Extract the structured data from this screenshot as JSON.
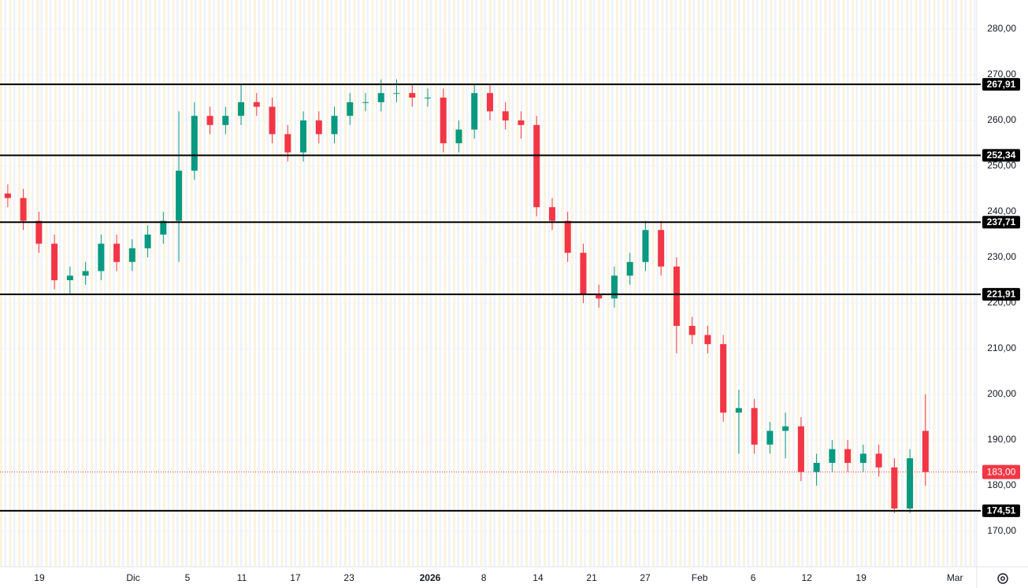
{
  "chart_data": {
    "type": "candlestick",
    "open": [
      244,
      243,
      238,
      233,
      225,
      226,
      227,
      233,
      229,
      232,
      235,
      238,
      249,
      261,
      259,
      261,
      264,
      263,
      257,
      253,
      260,
      257,
      261,
      264,
      264,
      266,
      266,
      265,
      265,
      255,
      258,
      266,
      262,
      260,
      259,
      241,
      238,
      231,
      222,
      221,
      226,
      229,
      236,
      228,
      215,
      213,
      211,
      196,
      197,
      189,
      192,
      193,
      183,
      185,
      188,
      185,
      187,
      184,
      175,
      192
    ],
    "high": [
      246,
      245,
      240,
      235,
      228,
      229,
      235,
      235,
      234,
      237,
      240,
      262,
      264,
      263,
      263,
      268,
      266,
      265,
      259,
      262,
      262,
      263,
      266,
      266,
      269,
      269,
      268,
      267,
      267,
      260,
      268,
      268,
      264,
      262,
      261,
      243,
      240,
      233,
      224,
      228,
      231,
      238,
      238,
      230,
      217,
      215,
      213,
      201,
      199,
      194,
      196,
      195,
      187,
      190,
      190,
      189,
      189,
      186,
      188,
      200
    ],
    "low": [
      241,
      236,
      231,
      223,
      222,
      224,
      225,
      227,
      227,
      230,
      233,
      229,
      247,
      257,
      257,
      259,
      261,
      255,
      251,
      251,
      255,
      255,
      259,
      262,
      262,
      264,
      263,
      263,
      253,
      253,
      256,
      260,
      258,
      256,
      239,
      236,
      229,
      220,
      219,
      219,
      224,
      227,
      226,
      209,
      211,
      209,
      194,
      187,
      187,
      187,
      186,
      181,
      180,
      183,
      183,
      183,
      182,
      174,
      174,
      180
    ],
    "close": [
      243,
      238,
      233,
      225,
      226,
      227,
      233,
      229,
      232,
      235,
      238,
      249,
      261,
      259,
      261,
      264,
      263,
      257,
      253,
      260,
      257,
      261,
      264,
      264,
      266,
      266,
      265,
      265,
      255,
      258,
      266,
      262,
      260,
      259,
      241,
      238,
      231,
      222,
      221,
      226,
      229,
      236,
      228,
      215,
      213,
      211,
      196,
      197,
      189,
      192,
      193,
      183,
      185,
      188,
      185,
      187,
      184,
      175,
      186,
      183
    ],
    "up_color": "#089981",
    "down_color": "#f23645",
    "xlim": [
      -0.5,
      62.3
    ],
    "xticks": [
      {
        "value": 2.03,
        "label": "19"
      },
      {
        "value": 8.06,
        "label": "Dic"
      },
      {
        "value": 11.55,
        "label": "5"
      },
      {
        "value": 15.05,
        "label": "11"
      },
      {
        "value": 18.49,
        "label": "17"
      },
      {
        "value": 21.94,
        "label": "23"
      },
      {
        "value": 27.15,
        "label": "2026"
      },
      {
        "value": 30.6,
        "label": "8"
      },
      {
        "value": 34.09,
        "label": "14"
      },
      {
        "value": 37.54,
        "label": "21"
      },
      {
        "value": 40.98,
        "label": "27"
      },
      {
        "value": 44.48,
        "label": "Feb"
      },
      {
        "value": 47.92,
        "label": "6"
      },
      {
        "value": 51.37,
        "label": "12"
      },
      {
        "value": 54.86,
        "label": "19"
      },
      {
        "value": 60.89,
        "label": "Mar"
      }
    ],
    "ylim": [
      162.24,
      286.38
    ],
    "yticks": [
      {
        "value": 170,
        "label": "170,00"
      },
      {
        "value": 180,
        "label": "180,00"
      },
      {
        "value": 190,
        "label": "190,00"
      },
      {
        "value": 200,
        "label": "200,00"
      },
      {
        "value": 210,
        "label": "210,00"
      },
      {
        "value": 220,
        "label": "220,00"
      },
      {
        "value": 230,
        "label": "230,00"
      },
      {
        "value": 240,
        "label": "240,00"
      },
      {
        "value": 250,
        "label": "250,00"
      },
      {
        "value": 260,
        "label": "260,00"
      },
      {
        "value": 270,
        "label": "270,00"
      },
      {
        "value": 280,
        "label": "280,00"
      }
    ],
    "grid": true,
    "levels": [
      {
        "value": 267.91,
        "label": "267,91"
      },
      {
        "value": 252.34,
        "label": "252,34"
      },
      {
        "value": 237.71,
        "label": "237,71"
      },
      {
        "value": 221.91,
        "label": "221,91"
      },
      {
        "value": 174.51,
        "label": "174,51"
      }
    ],
    "last_price": {
      "value": 183,
      "label": "183,00"
    }
  }
}
